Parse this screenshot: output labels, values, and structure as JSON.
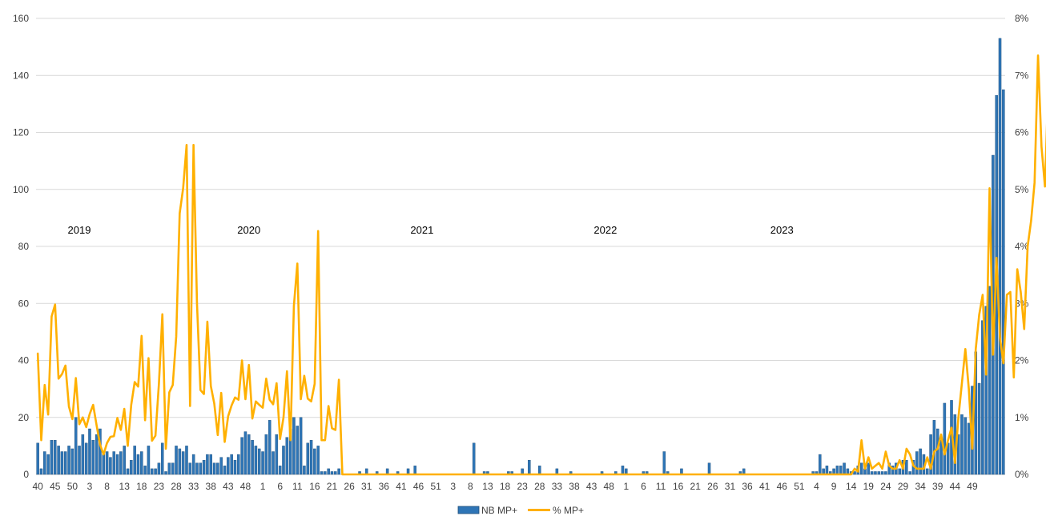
{
  "colors": {
    "bar": "#2E75B6",
    "bar_edge": "#1F4E79",
    "line": "#FFB000",
    "grid": "#D9D9D9",
    "text": "#404040"
  },
  "legend": {
    "bar_label": "NB MP+",
    "line_label": "%  MP+"
  },
  "chart_data": {
    "type": "bar+line",
    "title": "",
    "xlabel": "",
    "ylabel": "",
    "ylim": [
      0,
      160
    ],
    "y2lim": [
      0,
      8
    ],
    "yticks": [
      "0",
      "20",
      "40",
      "60",
      "80",
      "100",
      "120",
      "140",
      "160"
    ],
    "y2ticks": [
      "0%",
      "1%",
      "2%",
      "3%",
      "4%",
      "5%",
      "6%",
      "7%",
      "8%"
    ],
    "grid": true,
    "legend_position": "bottom",
    "year_annotations": [
      {
        "label": "2019",
        "week_index": 12
      },
      {
        "label": "2020",
        "week_index": 61
      },
      {
        "label": "2021",
        "week_index": 111
      },
      {
        "label": "2022",
        "week_index": 164
      },
      {
        "label": "2023",
        "week_index": 215
      }
    ],
    "x_tick_labels": [
      {
        "i": 0,
        "label": "40"
      },
      {
        "i": 5,
        "label": "45"
      },
      {
        "i": 10,
        "label": "50"
      },
      {
        "i": 15,
        "label": "3"
      },
      {
        "i": 20,
        "label": "8"
      },
      {
        "i": 25,
        "label": "13"
      },
      {
        "i": 30,
        "label": "18"
      },
      {
        "i": 35,
        "label": "23"
      },
      {
        "i": 40,
        "label": "28"
      },
      {
        "i": 45,
        "label": "33"
      },
      {
        "i": 50,
        "label": "38"
      },
      {
        "i": 55,
        "label": "43"
      },
      {
        "i": 60,
        "label": "48"
      },
      {
        "i": 65,
        "label": "1"
      },
      {
        "i": 70,
        "label": "6"
      },
      {
        "i": 75,
        "label": "11"
      },
      {
        "i": 80,
        "label": "16"
      },
      {
        "i": 85,
        "label": "21"
      },
      {
        "i": 90,
        "label": "26"
      },
      {
        "i": 95,
        "label": "31"
      },
      {
        "i": 100,
        "label": "36"
      },
      {
        "i": 105,
        "label": "41"
      },
      {
        "i": 110,
        "label": "46"
      },
      {
        "i": 115,
        "label": "51"
      },
      {
        "i": 120,
        "label": "3"
      },
      {
        "i": 125,
        "label": "8"
      },
      {
        "i": 130,
        "label": "13"
      },
      {
        "i": 135,
        "label": "18"
      },
      {
        "i": 140,
        "label": "23"
      },
      {
        "i": 145,
        "label": "28"
      },
      {
        "i": 150,
        "label": "33"
      },
      {
        "i": 155,
        "label": "38"
      },
      {
        "i": 160,
        "label": "43"
      },
      {
        "i": 165,
        "label": "48"
      },
      {
        "i": 170,
        "label": "1"
      },
      {
        "i": 175,
        "label": "6"
      },
      {
        "i": 180,
        "label": "11"
      },
      {
        "i": 185,
        "label": "16"
      },
      {
        "i": 190,
        "label": "21"
      },
      {
        "i": 195,
        "label": "26"
      },
      {
        "i": 200,
        "label": "31"
      },
      {
        "i": 205,
        "label": "36"
      },
      {
        "i": 210,
        "label": "41"
      },
      {
        "i": 215,
        "label": "46"
      },
      {
        "i": 220,
        "label": "51"
      },
      {
        "i": 225,
        "label": "4"
      },
      {
        "i": 230,
        "label": "9"
      },
      {
        "i": 235,
        "label": "14"
      },
      {
        "i": 240,
        "label": "19"
      },
      {
        "i": 245,
        "label": "24"
      },
      {
        "i": 250,
        "label": "29"
      },
      {
        "i": 255,
        "label": "34"
      },
      {
        "i": 260,
        "label": "39"
      },
      {
        "i": 265,
        "label": "44"
      },
      {
        "i": 270,
        "label": "49"
      }
    ],
    "series": [
      {
        "name": "NB MP+",
        "type": "bar",
        "axis": "left",
        "values": [
          11,
          2,
          8,
          7,
          12,
          12,
          10,
          8,
          8,
          10,
          9,
          20,
          10,
          14,
          11,
          16,
          12,
          14,
          16,
          7,
          8,
          6,
          8,
          7,
          8,
          10,
          2,
          5,
          10,
          7,
          8,
          3,
          10,
          2,
          2,
          4,
          11,
          1,
          4,
          4,
          10,
          9,
          8,
          10,
          4,
          7,
          4,
          4,
          5,
          7,
          7,
          4,
          4,
          6,
          3,
          6,
          7,
          5,
          7,
          13,
          15,
          14,
          12,
          10,
          9,
          8,
          14,
          19,
          8,
          14,
          3,
          10,
          13,
          16,
          20,
          17,
          20,
          3,
          11,
          12,
          9,
          10,
          1,
          1,
          2,
          1,
          1,
          2,
          0,
          0,
          0,
          0,
          0,
          1,
          0,
          2,
          0,
          0,
          1,
          0,
          0,
          2,
          0,
          0,
          1,
          0,
          0,
          2,
          0,
          3,
          0,
          0,
          0,
          0,
          0,
          0,
          0,
          0,
          0,
          0,
          0,
          0,
          0,
          0,
          0,
          0,
          11,
          0,
          0,
          1,
          1,
          0,
          0,
          0,
          0,
          0,
          1,
          1,
          0,
          0,
          2,
          0,
          5,
          0,
          0,
          3,
          0,
          0,
          0,
          0,
          2,
          0,
          0,
          0,
          1,
          0,
          0,
          0,
          0,
          0,
          0,
          0,
          0,
          1,
          0,
          0,
          0,
          1,
          0,
          3,
          2,
          0,
          0,
          0,
          0,
          1,
          1,
          0,
          0,
          0,
          0,
          8,
          1,
          0,
          0,
          0,
          2,
          0,
          0,
          0,
          0,
          0,
          0,
          0,
          4,
          0,
          0,
          0,
          0,
          0,
          0,
          0,
          0,
          1,
          2,
          0,
          0,
          0,
          0,
          0,
          0,
          0,
          0,
          0,
          0,
          0,
          0,
          0,
          0,
          0,
          0,
          0,
          0,
          0,
          1,
          1,
          7,
          2,
          3,
          1,
          2,
          3,
          3,
          4,
          2,
          1,
          1,
          3,
          4,
          2,
          4,
          1,
          1,
          1,
          1,
          1,
          4,
          3,
          4,
          2,
          5,
          5,
          1,
          5,
          8,
          9,
          7,
          2,
          14,
          19,
          16,
          12,
          25,
          11,
          26,
          21,
          14,
          21,
          20,
          18,
          31,
          43,
          32,
          54,
          59,
          66,
          112,
          133,
          153,
          135
        ]
      },
      {
        "name": "%  MP+",
        "type": "line",
        "axis": "right",
        "values": [
          2.12,
          0.6,
          1.57,
          1.05,
          2.77,
          2.98,
          1.68,
          1.76,
          1.91,
          1.19,
          0.97,
          1.69,
          0.88,
          1.0,
          0.83,
          1.06,
          1.22,
          0.86,
          0.52,
          0.35,
          0.55,
          0.66,
          0.67,
          0.99,
          0.78,
          1.15,
          0.5,
          1.22,
          1.62,
          1.54,
          2.43,
          0.95,
          2.04,
          0.59,
          0.68,
          1.59,
          2.81,
          0.45,
          1.44,
          1.57,
          2.42,
          4.58,
          5.02,
          5.78,
          1.2,
          5.78,
          3.0,
          1.48,
          1.41,
          2.68,
          1.55,
          1.24,
          0.69,
          1.43,
          0.57,
          1.02,
          1.21,
          1.35,
          1.31,
          2.0,
          1.32,
          1.92,
          0.98,
          1.28,
          1.22,
          1.17,
          1.68,
          1.31,
          1.23,
          1.6,
          0.62,
          1.0,
          1.81,
          0.6,
          2.96,
          3.7,
          1.32,
          1.73,
          1.33,
          1.28,
          1.59,
          4.27,
          0.6,
          0.6,
          1.2,
          0.81,
          0.78,
          1.66,
          0,
          0,
          0,
          0,
          0,
          0,
          0,
          0,
          0,
          0,
          0,
          0,
          0,
          0,
          0,
          0,
          0,
          0,
          0,
          0,
          0,
          0,
          0,
          0,
          0,
          0,
          0,
          0,
          0,
          0,
          0,
          0,
          0,
          0,
          0,
          0,
          0,
          0,
          0,
          0,
          0,
          0,
          0,
          0,
          0,
          0,
          0,
          0,
          0,
          0,
          0,
          0,
          0,
          0,
          0,
          0,
          0,
          0,
          0,
          0,
          0,
          0,
          0,
          0,
          0,
          0,
          0,
          0,
          0,
          0,
          0,
          0,
          0,
          0,
          0,
          0,
          0,
          0,
          0,
          0,
          0,
          0,
          0,
          0,
          0,
          0,
          0,
          0,
          0,
          0,
          0,
          0,
          0,
          0,
          0,
          0,
          0,
          0,
          0,
          0,
          0,
          0,
          0,
          0,
          0,
          0,
          0,
          0,
          0,
          0,
          0,
          0,
          0,
          0,
          0,
          0,
          0,
          0,
          0,
          0,
          0,
          0,
          0,
          0,
          0,
          0,
          0,
          0,
          0,
          0,
          0,
          0,
          0,
          0,
          0,
          0,
          0,
          0,
          0,
          0,
          0,
          0,
          0,
          0,
          0,
          0,
          0,
          0,
          0.1,
          0.05,
          0.6,
          0.1,
          0.3,
          0.1,
          0.15,
          0.2,
          0.1,
          0.4,
          0.15,
          0.1,
          0.1,
          0.25,
          0.1,
          0.45,
          0.35,
          0.15,
          0.1,
          0.1,
          0.1,
          0.3,
          0.1,
          0.4,
          0.45,
          0.7,
          0.35,
          0.6,
          0.82,
          0.2,
          1.0,
          1.6,
          2.2,
          1.5,
          0.45,
          2.2,
          2.8,
          3.15,
          1.75,
          5.02,
          2.1,
          3.8,
          2.4,
          1.95,
          3.15,
          3.2,
          1.7,
          3.6,
          3.2,
          2.55,
          4.0,
          4.45,
          5.12,
          7.35,
          5.75,
          5.05,
          6.9,
          5.1
        ]
      }
    ]
  }
}
